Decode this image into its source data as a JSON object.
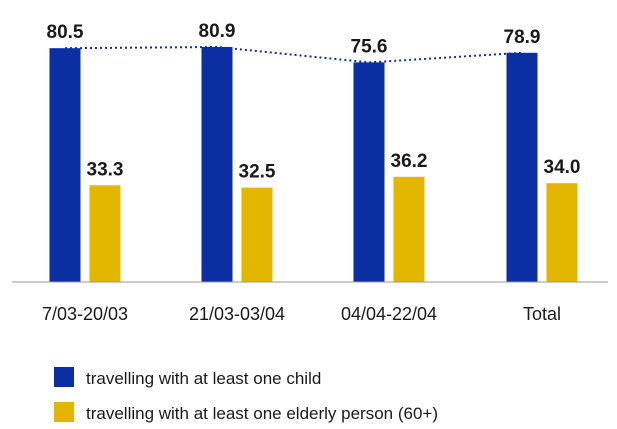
{
  "chart_data": {
    "type": "bar",
    "categories": [
      "7/03-20/03",
      "21/03-03/04",
      "04/04-22/04",
      "Total"
    ],
    "series": [
      {
        "name": "travelling with at least one child",
        "values": [
          80.5,
          80.9,
          75.6,
          78.9
        ],
        "color": "#0b2ea3"
      },
      {
        "name": "travelling with at least one elderly person (60+)",
        "values": [
          33.3,
          32.5,
          36.2,
          34.0
        ],
        "color": "#e3b600"
      }
    ],
    "value_labels": [
      [
        "80.5",
        "80.9",
        "75.6",
        "78.9"
      ],
      [
        "33.3",
        "32.5",
        "36.2",
        "34.0"
      ]
    ],
    "ylim": [
      0,
      84
    ],
    "trendline": {
      "series_index": 0,
      "style": "dotted",
      "color": "#0b2ea3"
    },
    "grid": false,
    "legend_position": "bottom-left"
  }
}
